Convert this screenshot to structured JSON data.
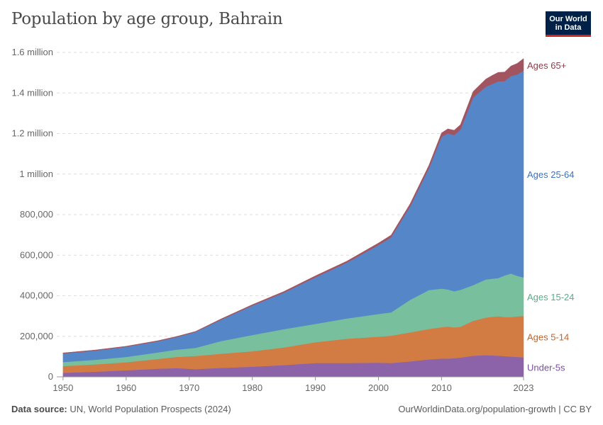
{
  "header": {
    "title": "Population by age group, Bahrain",
    "logo_line1": "Our World",
    "logo_line2": "in Data"
  },
  "footer": {
    "source_label": "Data source:",
    "source_text": "UN, World Population Prospects (2024)",
    "url": "OurWorldinData.org/population-growth | CC BY"
  },
  "chart_data": {
    "type": "area",
    "stacked": true,
    "x": [
      1950,
      1955,
      1960,
      1965,
      1968,
      1971,
      1975,
      1980,
      1985,
      1990,
      1995,
      2000,
      2002,
      2005,
      2008,
      2010,
      2011,
      2012,
      2013,
      2015,
      2017,
      2018,
      2019,
      2020,
      2021,
      2022,
      2023
    ],
    "series": [
      {
        "name": "Under-5s",
        "color": "#8c62a9",
        "values": [
          20000,
          25000,
          32000,
          40000,
          43000,
          38000,
          44000,
          50000,
          58000,
          68000,
          68000,
          70000,
          68000,
          76000,
          86000,
          90000,
          90000,
          92000,
          95000,
          104000,
          107000,
          106000,
          104000,
          102000,
          100000,
          98000,
          96000
        ]
      },
      {
        "name": "Ages 5-14",
        "color": "#d27c43",
        "values": [
          33000,
          36000,
          40000,
          48000,
          55000,
          65000,
          70000,
          76000,
          87000,
          103000,
          120000,
          128000,
          135000,
          143000,
          150000,
          155000,
          158000,
          152000,
          152000,
          172000,
          185000,
          190000,
          195000,
          193000,
          195000,
          200000,
          204000
        ]
      },
      {
        "name": "Ages 15-24",
        "color": "#78bf9e",
        "values": [
          20000,
          23000,
          26000,
          32000,
          36000,
          40000,
          62000,
          80000,
          90000,
          90000,
          100000,
          112000,
          115000,
          160000,
          192000,
          190000,
          183000,
          178000,
          182000,
          176000,
          188000,
          188000,
          188000,
          205000,
          214000,
          200000,
          190000
        ]
      },
      {
        "name": "Ages 25-64",
        "color": "#5587c8",
        "values": [
          42000,
          45000,
          50000,
          55000,
          62000,
          78000,
          105000,
          145000,
          180000,
          230000,
          275000,
          340000,
          370000,
          460000,
          600000,
          748000,
          770000,
          770000,
          790000,
          925000,
          950000,
          960000,
          970000,
          958000,
          974000,
          993000,
          1020000
        ]
      },
      {
        "name": "Ages 65+",
        "color": "#a25560",
        "values": [
          3000,
          3000,
          3000,
          3000,
          3000,
          3000,
          4000,
          5000,
          6000,
          7000,
          8000,
          10000,
          11000,
          13000,
          15000,
          20000,
          22000,
          24000,
          25000,
          30000,
          38000,
          42000,
          45000,
          45000,
          50000,
          55000,
          60000
        ]
      }
    ],
    "ylim": [
      0,
      1600000
    ],
    "xlim": [
      1949,
      2023
    ],
    "y_ticks": [
      {
        "value": 0,
        "label": "0"
      },
      {
        "value": 200000,
        "label": "200,000"
      },
      {
        "value": 400000,
        "label": "400,000"
      },
      {
        "value": 600000,
        "label": "600,000"
      },
      {
        "value": 800000,
        "label": "800,000"
      },
      {
        "value": 1000000,
        "label": "1 million"
      },
      {
        "value": 1200000,
        "label": "1.2 million"
      },
      {
        "value": 1400000,
        "label": "1.4 million"
      },
      {
        "value": 1600000,
        "label": "1.6 million"
      }
    ],
    "x_ticks": [
      {
        "value": 1950,
        "label": "1950"
      },
      {
        "value": 1960,
        "label": "1960"
      },
      {
        "value": 1970,
        "label": "1970"
      },
      {
        "value": 1980,
        "label": "1980"
      },
      {
        "value": 1990,
        "label": "1990"
      },
      {
        "value": 2000,
        "label": "2000"
      },
      {
        "value": 2010,
        "label": "2010"
      },
      {
        "value": 2023,
        "label": "2023"
      }
    ],
    "grid": true,
    "legend": "right"
  }
}
